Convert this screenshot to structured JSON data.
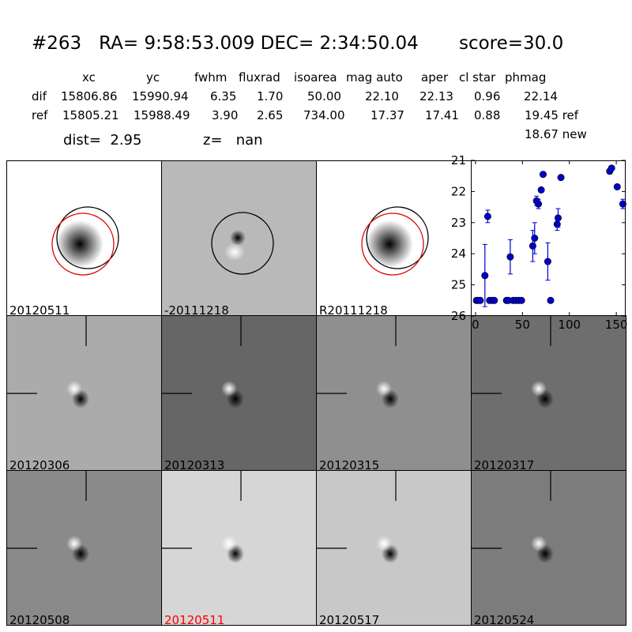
{
  "header": {
    "title": "#263   RA= 9:58:53.009 DEC= 2:34:50.04       score=30.0",
    "columns": [
      "xc",
      "yc",
      "fwhm",
      "fluxrad",
      "isoarea",
      "mag auto",
      "aper",
      "cl star",
      "phmag"
    ],
    "rows": [
      {
        "label": "dif",
        "values": [
          "15806.86",
          "15990.94",
          "6.35",
          "1.70",
          "50.00",
          "22.10",
          "22.13",
          "0.96",
          "22.14"
        ]
      },
      {
        "label": "ref",
        "values": [
          "15805.21",
          "15988.49",
          "3.90",
          "2.65",
          "734.00",
          "17.37",
          "17.41",
          "0.88",
          "19.45 ref"
        ]
      }
    ],
    "extra_phmag": "18.67 new",
    "dist_text": "dist=  2.95",
    "z_text": "z=   nan"
  },
  "panels": [
    {
      "label": "20120511",
      "bg": "#ffffff",
      "type": "ref"
    },
    {
      "label": "-20111218",
      "bg": "#b9b9b9",
      "type": "dif"
    },
    {
      "label": "R20111218",
      "bg": "#ffffff",
      "type": "ref"
    },
    {
      "label": "20120306",
      "bg": "#ababab",
      "type": "cut"
    },
    {
      "label": "20120313",
      "bg": "#666666",
      "type": "cut"
    },
    {
      "label": "20120315",
      "bg": "#8f8f8f",
      "type": "cut"
    },
    {
      "label": "20120317",
      "bg": "#6e6e6e",
      "type": "cut"
    },
    {
      "label": "20120508",
      "bg": "#8a8a8a",
      "type": "cut"
    },
    {
      "label": "20120511",
      "bg": "#d6d6d6",
      "type": "cut",
      "label_color": "#ff0000"
    },
    {
      "label": "20120517",
      "bg": "#c8c8c8",
      "type": "cut"
    },
    {
      "label": "20120524",
      "bg": "#7c7c7c",
      "type": "cut"
    }
  ],
  "chart_data": {
    "type": "scatter",
    "title": "",
    "xlabel": "",
    "ylabel": "",
    "xlim": [
      -5,
      160
    ],
    "ylim": [
      26,
      21
    ],
    "xticks": [
      0,
      50,
      100,
      150
    ],
    "yticks": [
      21,
      22,
      23,
      24,
      25,
      26
    ],
    "color": "#0000cc",
    "points": [
      {
        "x": 1,
        "y": 25.5
      },
      {
        "x": 3,
        "y": 25.5
      },
      {
        "x": 5,
        "y": 25.5
      },
      {
        "x": 10,
        "y": 24.7,
        "err": 1.0
      },
      {
        "x": 13,
        "y": 22.8,
        "err": 0.2
      },
      {
        "x": 15,
        "y": 25.5
      },
      {
        "x": 18,
        "y": 25.5
      },
      {
        "x": 20,
        "y": 25.5
      },
      {
        "x": 33,
        "y": 25.5
      },
      {
        "x": 35,
        "y": 25.5
      },
      {
        "x": 37,
        "y": 24.1,
        "err": 0.55
      },
      {
        "x": 40,
        "y": 25.5
      },
      {
        "x": 43,
        "y": 25.5
      },
      {
        "x": 46,
        "y": 25.5
      },
      {
        "x": 49,
        "y": 25.5
      },
      {
        "x": 61,
        "y": 23.75,
        "err": 0.5
      },
      {
        "x": 63,
        "y": 23.5,
        "err": 0.5
      },
      {
        "x": 65,
        "y": 22.3,
        "err": 0.15
      },
      {
        "x": 67,
        "y": 22.4,
        "err": 0.15
      },
      {
        "x": 70,
        "y": 21.95
      },
      {
        "x": 72,
        "y": 21.45
      },
      {
        "x": 77,
        "y": 24.25,
        "err": 0.6
      },
      {
        "x": 80,
        "y": 25.5
      },
      {
        "x": 87,
        "y": 23.05,
        "err": 0.2
      },
      {
        "x": 88,
        "y": 22.85,
        "err": 0.3
      },
      {
        "x": 91,
        "y": 21.55
      },
      {
        "x": 143,
        "y": 21.35
      },
      {
        "x": 145,
        "y": 21.25
      },
      {
        "x": 151,
        "y": 21.85
      },
      {
        "x": 157,
        "y": 22.4,
        "err": 0.15
      }
    ]
  }
}
